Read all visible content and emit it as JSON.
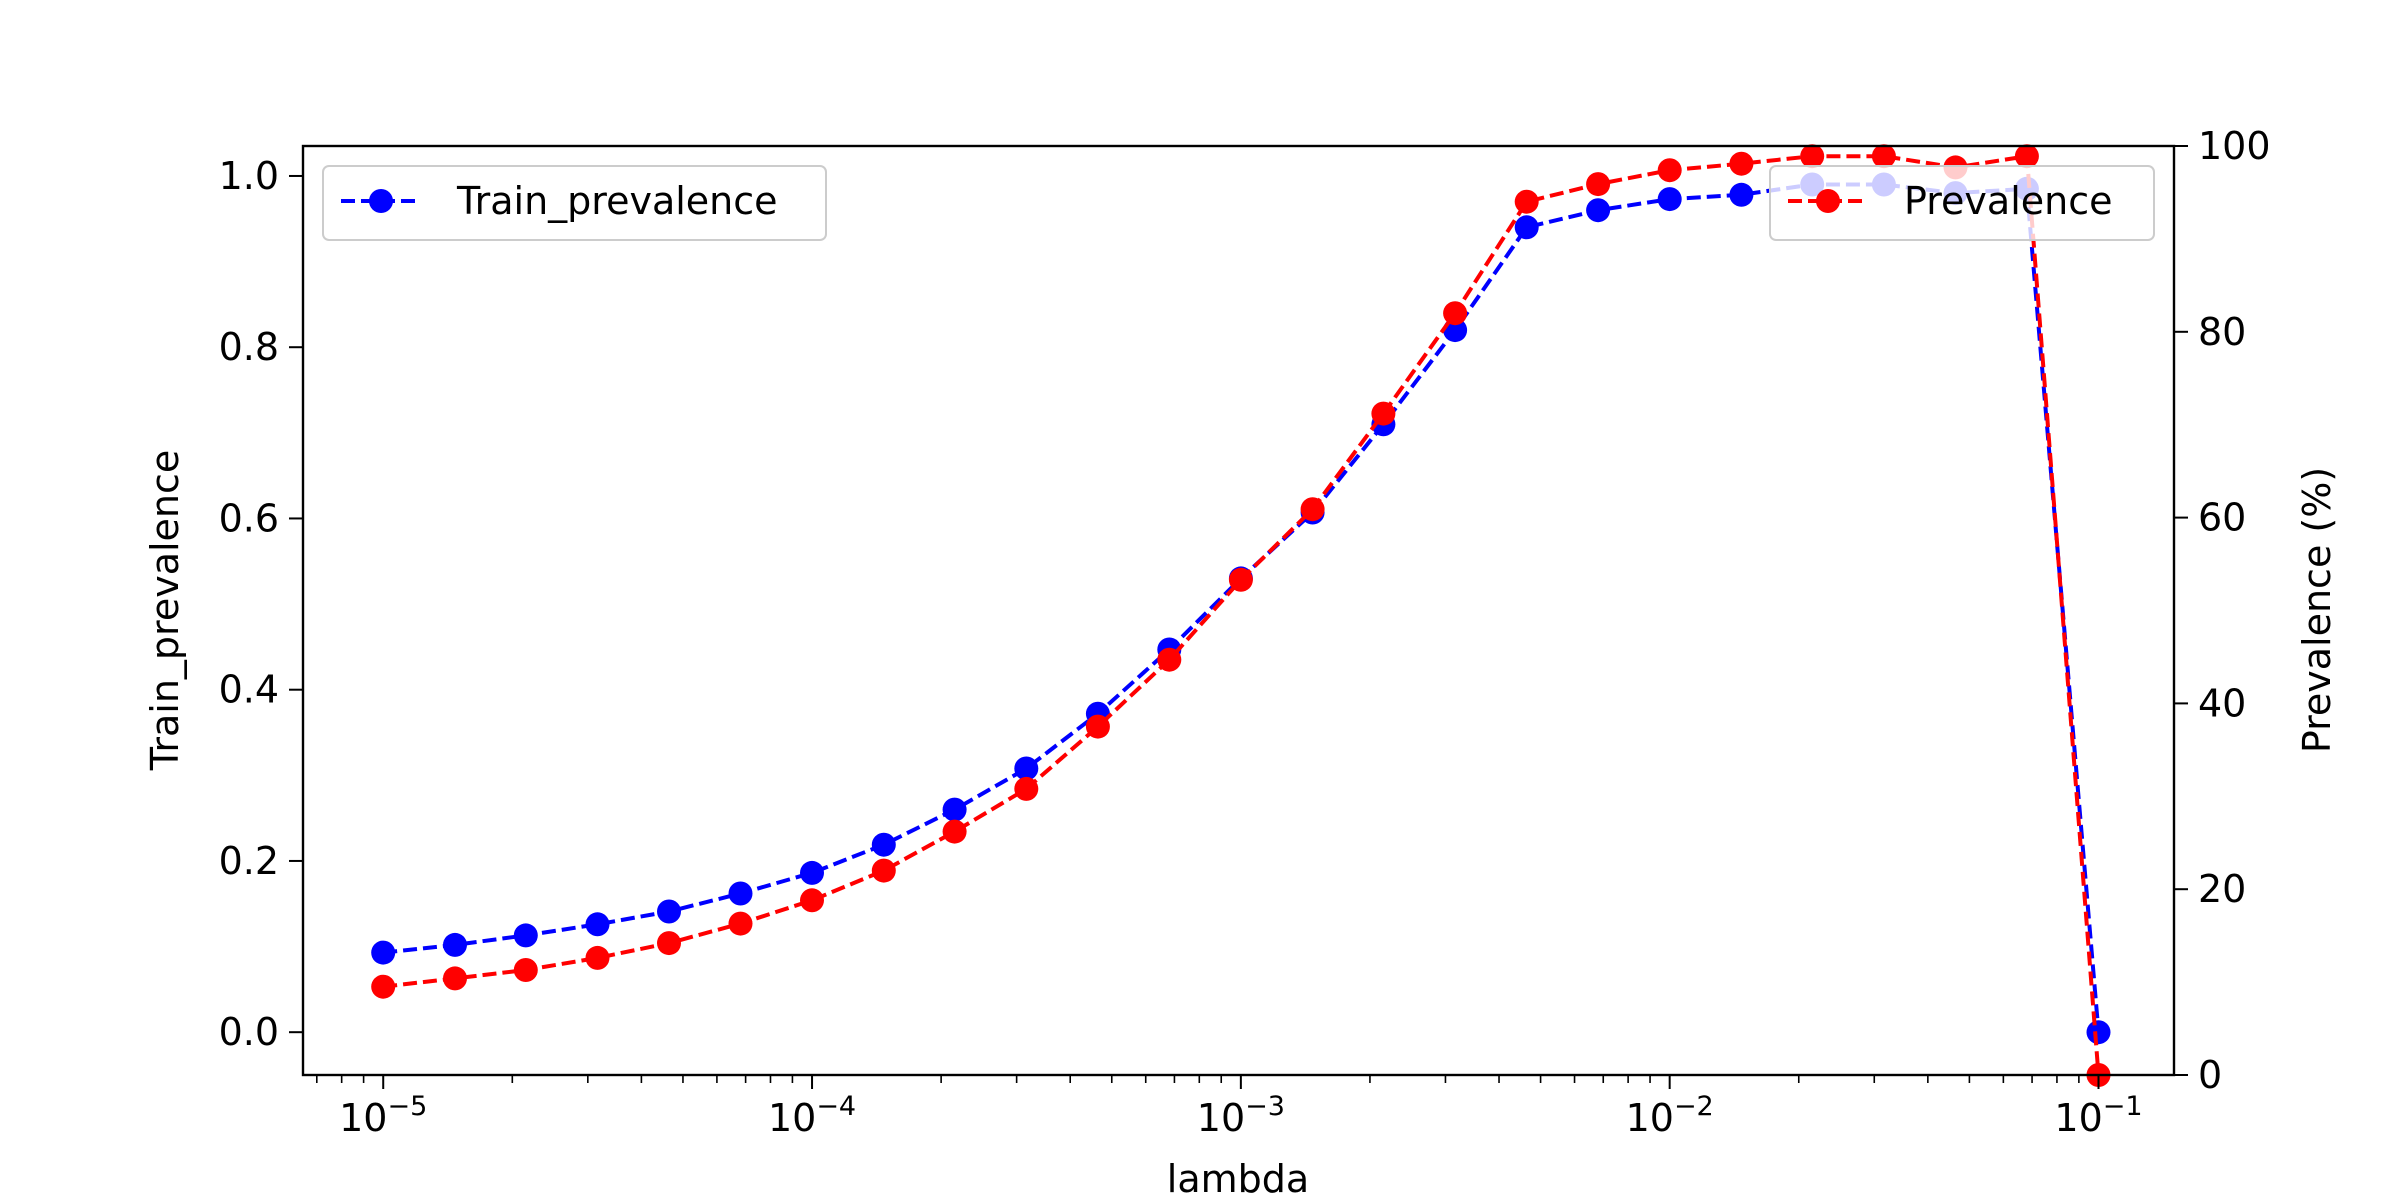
{
  "chart_data": {
    "type": "line",
    "xscale": "log",
    "xlim": [
      6.5e-06,
      0.15
    ],
    "x_ticks": [
      {
        "value": 1e-05,
        "base": "10",
        "exp": "−5"
      },
      {
        "value": 0.0001,
        "base": "10",
        "exp": "−4"
      },
      {
        "value": 0.001,
        "base": "10",
        "exp": "−3"
      },
      {
        "value": 0.01,
        "base": "10",
        "exp": "−2"
      },
      {
        "value": 0.1,
        "base": "10",
        "exp": "−1"
      }
    ],
    "xlabel": "lambda",
    "x": [
      1e-05,
      1.47e-05,
      2.15e-05,
      3.16e-05,
      4.64e-05,
      6.81e-05,
      0.0001,
      0.000147,
      0.000215,
      0.000316,
      0.000464,
      0.000681,
      0.001,
      0.00147,
      0.00215,
      0.00316,
      0.00464,
      0.00681,
      0.01,
      0.0147,
      0.0215,
      0.0316,
      0.0464,
      0.0681,
      0.1
    ],
    "axes": {
      "left": {
        "label": "Train_prevalence",
        "ylim": [
          -0.05,
          1.035
        ],
        "ticks": [
          0.0,
          0.2,
          0.4,
          0.6,
          0.8,
          1.0
        ],
        "tick_labels": [
          "0.0",
          "0.2",
          "0.4",
          "0.6",
          "0.8",
          "1.0"
        ]
      },
      "right": {
        "label": "Prevalence (%)",
        "ylim": [
          0,
          100
        ],
        "ticks": [
          0,
          20,
          40,
          60,
          80,
          100
        ],
        "tick_labels": [
          "0",
          "20",
          "40",
          "60",
          "80",
          "100"
        ]
      }
    },
    "series": [
      {
        "name": "Train_prevalence",
        "axis": "left",
        "color": "#0000ff",
        "style": "dashed",
        "marker": "circle",
        "values": [
          0.093,
          0.102,
          0.113,
          0.126,
          0.141,
          0.162,
          0.186,
          0.219,
          0.26,
          0.308,
          0.372,
          0.447,
          0.53,
          0.607,
          0.71,
          0.82,
          0.94,
          0.96,
          0.973,
          0.978,
          0.99,
          0.99,
          0.98,
          0.985,
          0.0
        ]
      },
      {
        "name": "Prevalence",
        "axis": "right",
        "color": "#ff0000",
        "style": "dashed",
        "marker": "circle",
        "values": [
          9.5,
          10.4,
          11.3,
          12.6,
          14.2,
          16.3,
          18.8,
          22.0,
          26.2,
          30.8,
          37.5,
          44.7,
          53.3,
          60.9,
          71.2,
          82.0,
          94.0,
          95.9,
          97.4,
          98.1,
          98.9,
          98.9,
          97.7,
          98.9,
          0.0
        ]
      }
    ],
    "legends": [
      {
        "series": "Train_prevalence",
        "placement": "upper left"
      },
      {
        "series": "Prevalence",
        "placement": "upper right"
      }
    ],
    "grid": false
  }
}
